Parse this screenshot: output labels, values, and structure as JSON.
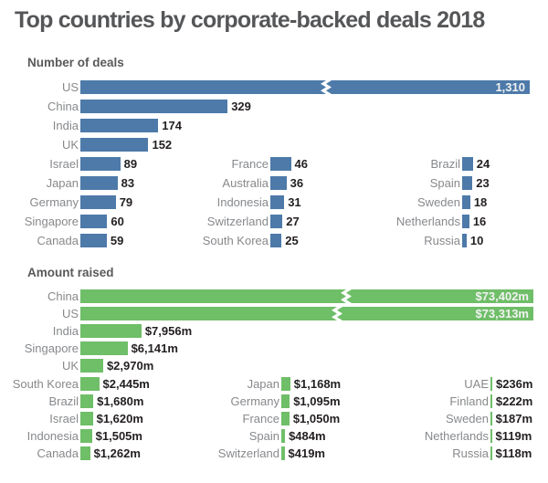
{
  "title": "Top countries by corporate-backed deals 2018",
  "colors": {
    "deals_bar": "#4d7aa9",
    "amount_bar": "#6fbe68",
    "title_text": "#555658",
    "section_text": "#58595b",
    "label_text": "#87898c",
    "value_text": "#231f20",
    "inbar_text": "#f2f2f2"
  },
  "chart_data": [
    {
      "type": "bar",
      "orientation": "horizontal",
      "title": "Number of deals",
      "unit": "deals",
      "color_key": "deals_bar",
      "rows": [
        {
          "label": "US",
          "value": 1310,
          "display": "1,310",
          "broken": true,
          "value_inside": true
        },
        {
          "label": "China",
          "value": 329,
          "display": "329"
        },
        {
          "label": "India",
          "value": 174,
          "display": "174"
        },
        {
          "label": "UK",
          "value": 152,
          "display": "152"
        }
      ],
      "columns": [
        [
          {
            "label": "Israel",
            "value": 89,
            "display": "89"
          },
          {
            "label": "Japan",
            "value": 83,
            "display": "83"
          },
          {
            "label": "Germany",
            "value": 79,
            "display": "79"
          },
          {
            "label": "Singapore",
            "value": 60,
            "display": "60"
          },
          {
            "label": "Canada",
            "value": 59,
            "display": "59"
          }
        ],
        [
          {
            "label": "France",
            "value": 46,
            "display": "46"
          },
          {
            "label": "Australia",
            "value": 36,
            "display": "36"
          },
          {
            "label": "Indonesia",
            "value": 31,
            "display": "31"
          },
          {
            "label": "Switzerland",
            "value": 27,
            "display": "27"
          },
          {
            "label": "South Korea",
            "value": 25,
            "display": "25"
          }
        ],
        [
          {
            "label": "Brazil",
            "value": 24,
            "display": "24"
          },
          {
            "label": "Spain",
            "value": 23,
            "display": "23"
          },
          {
            "label": "Sweden",
            "value": 18,
            "display": "18"
          },
          {
            "label": "Netherlands",
            "value": 16,
            "display": "16"
          },
          {
            "label": "Russia",
            "value": 10,
            "display": "10"
          }
        ]
      ]
    },
    {
      "type": "bar",
      "orientation": "horizontal",
      "title": "Amount raised",
      "unit": "$m",
      "color_key": "amount_bar",
      "rows": [
        {
          "label": "China",
          "value": 73402,
          "display": "$73,402m",
          "broken": true,
          "value_inside": true
        },
        {
          "label": "US",
          "value": 73313,
          "display": "$73,313m",
          "broken": true,
          "value_inside": true
        },
        {
          "label": "India",
          "value": 7956,
          "display": "$7,956m"
        },
        {
          "label": "Singapore",
          "value": 6141,
          "display": "$6,141m"
        },
        {
          "label": "UK",
          "value": 2970,
          "display": "$2,970m"
        }
      ],
      "columns": [
        [
          {
            "label": "South Korea",
            "value": 2445,
            "display": "$2,445m"
          },
          {
            "label": "Brazil",
            "value": 1680,
            "display": "$1,680m"
          },
          {
            "label": "Israel",
            "value": 1620,
            "display": "$1,620m"
          },
          {
            "label": "Indonesia",
            "value": 1505,
            "display": "$1,505m"
          },
          {
            "label": "Canada",
            "value": 1262,
            "display": "$1,262m"
          }
        ],
        [
          {
            "label": "Japan",
            "value": 1168,
            "display": "$1,168m"
          },
          {
            "label": "Germany",
            "value": 1095,
            "display": "$1,095m"
          },
          {
            "label": "France",
            "value": 1050,
            "display": "$1,050m"
          },
          {
            "label": "Spain",
            "value": 484,
            "display": "$484m"
          },
          {
            "label": "Switzerland",
            "value": 419,
            "display": "$419m"
          }
        ],
        [
          {
            "label": "UAE",
            "value": 236,
            "display": "$236m"
          },
          {
            "label": "Finland",
            "value": 222,
            "display": "$222m"
          },
          {
            "label": "Sweden",
            "value": 187,
            "display": "$187m"
          },
          {
            "label": "Netherlands",
            "value": 119,
            "display": "$119m"
          },
          {
            "label": "Russia",
            "value": 118,
            "display": "$118m"
          }
        ]
      ]
    }
  ]
}
